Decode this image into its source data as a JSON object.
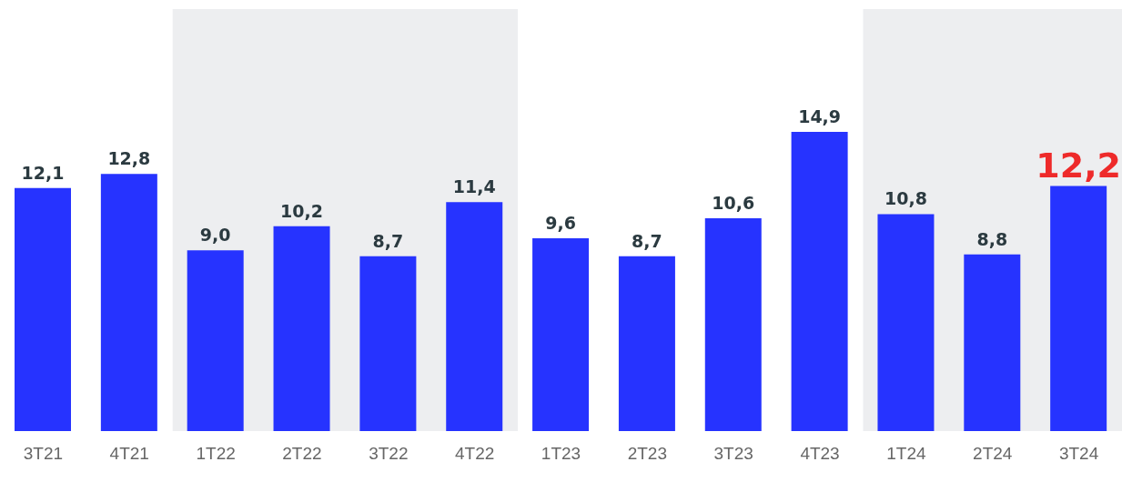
{
  "chart_data": {
    "type": "bar",
    "categories": [
      "3T21",
      "4T21",
      "1T22",
      "2T22",
      "3T22",
      "4T22",
      "1T23",
      "2T23",
      "3T23",
      "4T23",
      "1T24",
      "2T24",
      "3T24"
    ],
    "values": [
      12.1,
      12.8,
      9.0,
      10.2,
      8.7,
      11.4,
      9.6,
      8.7,
      10.6,
      14.9,
      10.8,
      8.8,
      12.2
    ],
    "color": "#2633ff",
    "value_labels": [
      "12,1",
      "12,8",
      "9,0",
      "10,2",
      "8,7",
      "11,4",
      "9,6",
      "8,7",
      "10,6",
      "14,9",
      "10,8",
      "8,8",
      "12,2"
    ],
    "bands": [
      {
        "axis": "x",
        "from": "1T22",
        "to": "4T22",
        "color": "#edeef0"
      },
      {
        "axis": "x",
        "from": "1T24",
        "to": "3T24",
        "color": "#edeef0"
      }
    ],
    "grid": false,
    "legend": false
  }
}
